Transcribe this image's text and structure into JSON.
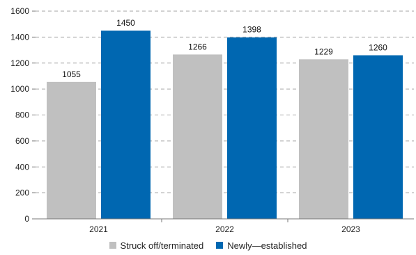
{
  "chart_data": {
    "type": "bar",
    "categories": [
      "2021",
      "2022",
      "2023"
    ],
    "series": [
      {
        "name": "Struck off/terminated",
        "values": [
          1055,
          1266,
          1229
        ],
        "color": "#c0c0c0"
      },
      {
        "name": "Newly—established",
        "values": [
          1450,
          1398,
          1260
        ],
        "color": "#0067b1"
      }
    ],
    "ylim": [
      0,
      1600
    ],
    "yticks": [
      0,
      200,
      400,
      600,
      800,
      1000,
      1200,
      1400,
      1600
    ],
    "grid": true,
    "legend": "bottom-center",
    "title": "",
    "xlabel": "",
    "ylabel": ""
  }
}
